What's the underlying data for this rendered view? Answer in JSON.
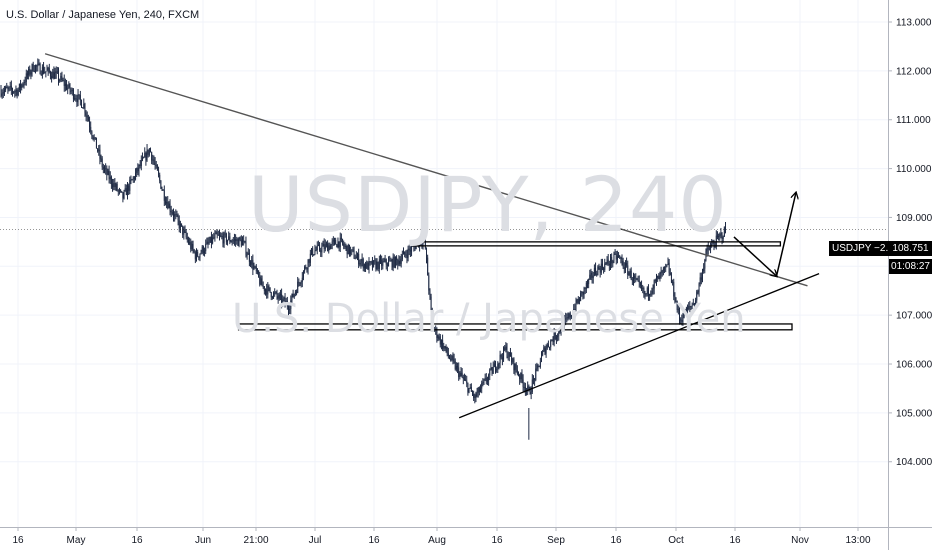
{
  "header": {
    "title": "U.S. Dollar / Japanese Yen, 240, FXCM"
  },
  "watermark": {
    "symbol": "USDJPY, 240",
    "description": "U.S. Dollar / Japanese Yen"
  },
  "price_axis": {
    "symbol_change_label": "USDJPY −2.12%",
    "last_price": "108.751",
    "countdown": "01:08:27",
    "label_color": "#000000"
  },
  "colors": {
    "candle": "#1e2a44",
    "trendline": "#000000",
    "grid": "#f0f3fa",
    "axis_text": "#131722"
  },
  "chart_data": {
    "type": "candlestick",
    "title": "U.S. Dollar / Japanese Yen, 240, FXCM",
    "xlabel": "",
    "ylabel": "",
    "ylim": [
      103.8,
      113.4
    ],
    "y_ticks": [
      "113.000",
      "112.000",
      "111.000",
      "110.000",
      "109.000",
      "108.000",
      "107.000",
      "106.000",
      "105.000",
      "104.000"
    ],
    "x_ticks": [
      "16",
      "May",
      "16",
      "Jun",
      "21:00",
      "Jul",
      "16",
      "Aug",
      "16",
      "Sep",
      "16",
      "Oct",
      "16",
      "Nov",
      "13:00"
    ],
    "grid": true,
    "price_path": [
      {
        "date": "2019-04-16",
        "value": 111.6
      },
      {
        "date": "2019-04-20",
        "value": 112.1
      },
      {
        "date": "2019-04-26",
        "value": 111.9
      },
      {
        "date": "2019-05-03",
        "value": 111.3
      },
      {
        "date": "2019-05-08",
        "value": 110.0
      },
      {
        "date": "2019-05-13",
        "value": 109.4
      },
      {
        "date": "2019-05-20",
        "value": 110.4
      },
      {
        "date": "2019-05-24",
        "value": 109.4
      },
      {
        "date": "2019-06-01",
        "value": 108.2
      },
      {
        "date": "2019-06-06",
        "value": 108.6
      },
      {
        "date": "2019-06-13",
        "value": 108.5
      },
      {
        "date": "2019-06-18",
        "value": 107.6
      },
      {
        "date": "2019-06-25",
        "value": 107.2
      },
      {
        "date": "2019-07-01",
        "value": 108.3
      },
      {
        "date": "2019-07-08",
        "value": 108.5
      },
      {
        "date": "2019-07-15",
        "value": 108.0
      },
      {
        "date": "2019-07-23",
        "value": 108.1
      },
      {
        "date": "2019-07-30",
        "value": 108.6
      },
      {
        "date": "2019-08-01",
        "value": 106.8
      },
      {
        "date": "2019-08-05",
        "value": 106.2
      },
      {
        "date": "2019-08-12",
        "value": 105.3
      },
      {
        "date": "2019-08-20",
        "value": 106.3
      },
      {
        "date": "2019-08-26",
        "value": 105.4
      },
      {
        "date": "2019-08-30",
        "value": 106.3
      },
      {
        "date": "2019-09-05",
        "value": 106.9
      },
      {
        "date": "2019-09-12",
        "value": 107.9
      },
      {
        "date": "2019-09-18",
        "value": 108.2
      },
      {
        "date": "2019-09-25",
        "value": 107.4
      },
      {
        "date": "2019-10-01",
        "value": 108.0
      },
      {
        "date": "2019-10-04",
        "value": 106.9
      },
      {
        "date": "2019-10-08",
        "value": 107.3
      },
      {
        "date": "2019-10-11",
        "value": 108.3
      },
      {
        "date": "2019-10-16",
        "value": 108.75
      }
    ],
    "last_price": 108.751,
    "change_percent": -2.12,
    "drawings": {
      "trendlines": [
        {
          "from": {
            "date": "2019-04-23",
            "value": 112.35
          },
          "to": {
            "date": "2019-11-06",
            "value": 107.6
          }
        },
        {
          "from": {
            "date": "2019-08-08",
            "value": 104.9
          },
          "to": {
            "date": "2019-11-09",
            "value": 107.85
          }
        }
      ],
      "zones": [
        {
          "from_date": "2019-07-27",
          "to_date": "2019-10-30",
          "top": 108.5,
          "bottom": 108.42
        },
        {
          "from_date": "2019-06-12",
          "to_date": "2019-11-02",
          "top": 106.82,
          "bottom": 106.7
        }
      ],
      "projection_arrows": [
        {
          "from": {
            "date": "2019-10-18",
            "value": 108.6
          },
          "to": {
            "date": "2019-10-29",
            "value": 107.8
          }
        },
        {
          "from": {
            "date": "2019-10-29",
            "value": 107.8
          },
          "to": {
            "date": "2019-11-03",
            "value": 109.5
          }
        }
      ]
    }
  }
}
